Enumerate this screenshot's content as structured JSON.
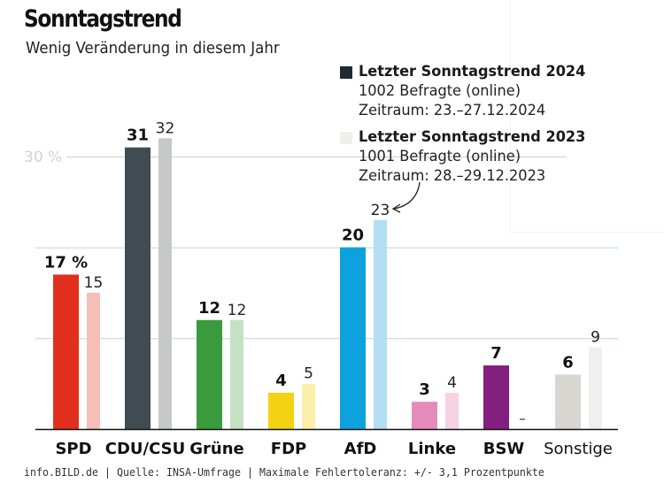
{
  "header": {
    "title": "Sonntagstrend",
    "subtitle": "Wenig Veränderung in diesem Jahr"
  },
  "legend": [
    {
      "title": "Letzter Sonntagstrend 2024",
      "lines": [
        "1002 Befragte (online)",
        "Zeitraum: 23.–27.12.2024"
      ],
      "color": "#1f2a33"
    },
    {
      "title": "Letzter Sonntagstrend 2023",
      "lines": [
        "1001 Befragte (online)",
        "Zeitraum: 28.–29.12.2023"
      ],
      "color": "#efefed"
    }
  ],
  "footer": "info.BILD.de | Quelle: INSA-Umfrage | Maximale Fehlertoleranz: +/- 3,1 Prozentpunkte",
  "chart_data": {
    "type": "bar",
    "title": "Sonntagstrend",
    "subtitle": "Wenig Veränderung in diesem Jahr",
    "xlabel": "",
    "ylabel": "",
    "ylim": [
      0,
      33
    ],
    "grid": true,
    "gridlines": [
      10,
      20,
      30
    ],
    "tick_label": "30 %",
    "tick_label_value": 30,
    "legend_position": "top-right",
    "categories": [
      "SPD",
      "CDU/CSU",
      "Grüne",
      "FDP",
      "AfD",
      "Linke",
      "BSW",
      "Sonstige"
    ],
    "category_label_bold": [
      true,
      true,
      true,
      true,
      true,
      true,
      true,
      false
    ],
    "series": [
      {
        "name": "Letzter Sonntagstrend 2024",
        "values": [
          17,
          31,
          12,
          4,
          20,
          3,
          7,
          6
        ],
        "labels": [
          "17 %",
          "31",
          "12",
          "4",
          "20",
          "3",
          "7",
          "6"
        ],
        "colors": [
          "#e1301e",
          "#414c52",
          "#3a9b3c",
          "#f3d214",
          "#0da2dd",
          "#e58bb9",
          "#821f80",
          "#d7d6d1"
        ]
      },
      {
        "name": "Letzter Sonntagstrend 2023",
        "values": [
          15,
          32,
          12,
          5,
          23,
          4,
          null,
          9
        ],
        "labels": [
          "15",
          "32",
          "12",
          "5",
          "23",
          "4",
          "–",
          "9"
        ],
        "colors": [
          "#f5bfb8",
          "#c6c8ca",
          "#c4e1c4",
          "#fbf0aa",
          "#b3def3",
          "#f6d3e4",
          "#ffffff",
          "#efefed"
        ]
      }
    ],
    "annotations": [
      {
        "text": "arrow from legend 2023 entry to AfD 2023 value",
        "target_category": "AfD",
        "target_series": 1
      }
    ]
  }
}
